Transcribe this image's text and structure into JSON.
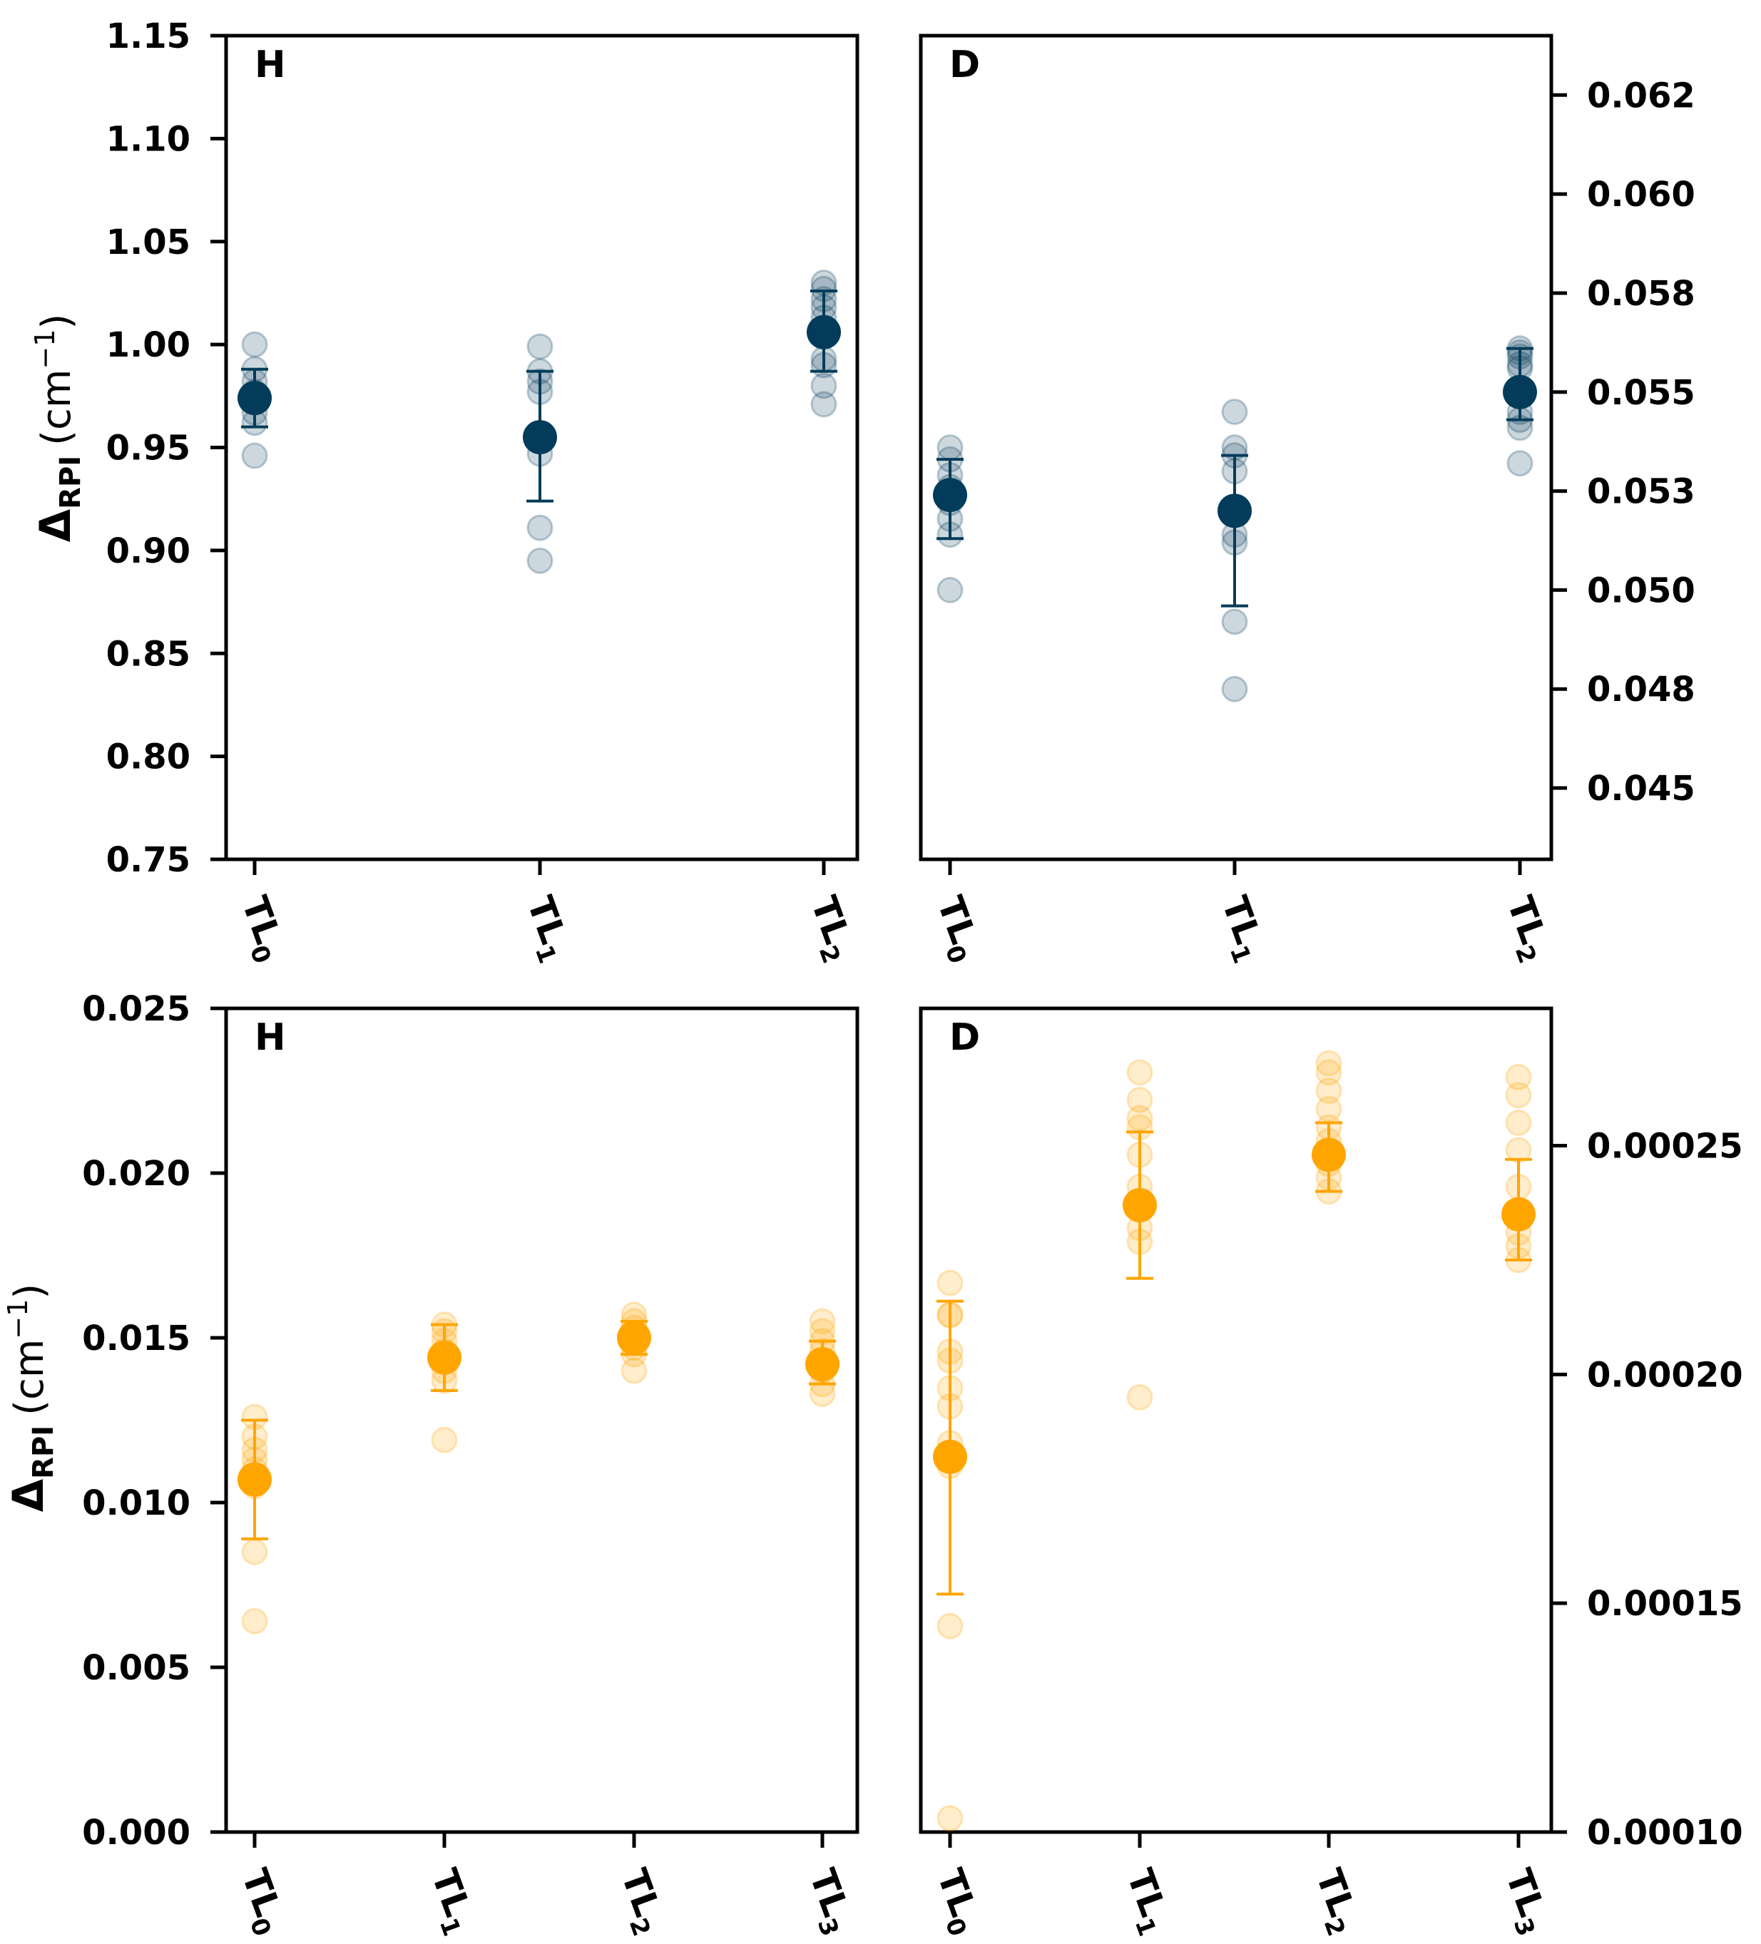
{
  "figure": {
    "ylabel_main": "Δ",
    "ylabel_sub": "RPI",
    "ylabel_unit": "(cm",
    "ylabel_exp": "−1",
    "ylabel_close": ")"
  },
  "colors": {
    "navy": "#033c5a",
    "orange": "#ffa500"
  },
  "chart_data": [
    {
      "id": "top-left",
      "type": "scatter",
      "panel_label": "H",
      "color": "#033c5a",
      "categories": [
        "TL",
        "TL",
        "TL"
      ],
      "category_subs": [
        "0",
        "1",
        "2"
      ],
      "ylim": [
        0.75,
        1.15
      ],
      "axis": "left",
      "yticks": [
        0.75,
        0.8,
        0.85,
        0.9,
        0.95,
        1.0,
        1.05,
        1.1,
        1.15
      ],
      "ytick_labels": [
        "0.75",
        "0.80",
        "0.85",
        "0.90",
        "0.95",
        "1.00",
        "1.05",
        "1.10",
        "1.15"
      ],
      "ylabel": "ΔRPI (cm−1)",
      "points": [
        [
          1.0,
          0.988,
          0.982,
          0.977,
          0.972,
          0.967,
          0.962,
          0.946
        ],
        [
          0.999,
          0.987,
          0.982,
          0.977,
          0.955,
          0.947,
          0.911,
          0.895
        ],
        [
          1.03,
          1.027,
          1.022,
          1.018,
          1.013,
          0.993,
          0.99,
          0.98,
          0.971
        ]
      ],
      "means": [
        0.974,
        0.955,
        1.006
      ],
      "err_low": [
        0.96,
        0.924,
        0.987
      ],
      "err_high": [
        0.988,
        0.987,
        1.026
      ]
    },
    {
      "id": "top-right",
      "type": "scatter",
      "panel_label": "D",
      "color": "#033c5a",
      "categories": [
        "TL",
        "TL",
        "TL"
      ],
      "category_subs": [
        "0",
        "1",
        "2"
      ],
      "ylim": [
        0.0432,
        0.064
      ],
      "axis": "right",
      "yticks": [
        0.045,
        0.0475,
        0.05,
        0.0525,
        0.055,
        0.0575,
        0.06,
        0.0625
      ],
      "ytick_labels": [
        "0.045",
        "0.048",
        "0.050",
        "0.053",
        "0.055",
        "0.058",
        "0.060",
        "0.062"
      ],
      "points": [
        [
          0.0536,
          0.0533,
          0.0529,
          0.0526,
          0.0522,
          0.0518,
          0.0514,
          0.05
        ],
        [
          0.0545,
          0.0536,
          0.0534,
          0.053,
          0.0521,
          0.0514,
          0.0512,
          0.0492,
          0.0475
        ],
        [
          0.0561,
          0.056,
          0.0559,
          0.0557,
          0.0556,
          0.0545,
          0.0543,
          0.0541,
          0.0532
        ]
      ],
      "means": [
        0.0524,
        0.052,
        0.055
      ],
      "err_low": [
        0.0513,
        0.0496,
        0.0543
      ],
      "err_high": [
        0.0533,
        0.0534,
        0.0561
      ]
    },
    {
      "id": "bottom-left",
      "type": "scatter",
      "panel_label": "H",
      "color": "#ffa500",
      "categories": [
        "TL",
        "TL",
        "TL",
        "TL"
      ],
      "category_subs": [
        "0",
        "1",
        "2",
        "3"
      ],
      "ylim": [
        0.0,
        0.025
      ],
      "axis": "left",
      "yticks": [
        0.0,
        0.005,
        0.01,
        0.015,
        0.02,
        0.025
      ],
      "ytick_labels": [
        "0.000",
        "0.005",
        "0.010",
        "0.015",
        "0.020",
        "0.025"
      ],
      "ylabel": "ΔRPI (cm−1)",
      "points": [
        [
          0.0126,
          0.012,
          0.0116,
          0.0113,
          0.011,
          0.0105,
          0.0085,
          0.0064
        ],
        [
          0.0154,
          0.0152,
          0.0149,
          0.0146,
          0.0143,
          0.014,
          0.0137,
          0.0119
        ],
        [
          0.0157,
          0.0155,
          0.0153,
          0.0151,
          0.0149,
          0.0147,
          0.0145,
          0.014
        ],
        [
          0.0155,
          0.0152,
          0.0149,
          0.0146,
          0.0143,
          0.014,
          0.0136,
          0.0133
        ]
      ],
      "means": [
        0.0107,
        0.0144,
        0.015,
        0.0142
      ],
      "err_low": [
        0.0089,
        0.0134,
        0.0145,
        0.0136
      ],
      "err_high": [
        0.0125,
        0.0154,
        0.0155,
        0.0149
      ]
    },
    {
      "id": "bottom-right",
      "type": "scatter",
      "panel_label": "D",
      "color": "#ffa500",
      "categories": [
        "TL",
        "TL",
        "TL",
        "TL"
      ],
      "category_subs": [
        "0",
        "1",
        "2",
        "3"
      ],
      "ylim": [
        0.0001,
        0.00028
      ],
      "axis": "right",
      "yticks": [
        0.0001,
        0.00015,
        0.0002,
        0.00025
      ],
      "ytick_labels": [
        "0.00010",
        "0.00015",
        "0.00020",
        "0.00025"
      ],
      "points": [
        [
          0.00022,
          0.000213,
          0.000213,
          0.000205,
          0.000203,
          0.000197,
          0.000193,
          0.000185,
          0.00018,
          0.000145,
          0.000103
        ],
        [
          0.000266,
          0.00026,
          0.000256,
          0.000254,
          0.000248,
          0.000241,
          0.000236,
          0.000232,
          0.000229,
          0.000195
        ],
        [
          0.000268,
          0.000266,
          0.000262,
          0.000258,
          0.000254,
          0.000251,
          0.000248,
          0.000246,
          0.000243,
          0.00024
        ],
        [
          0.000265,
          0.000261,
          0.000255,
          0.000249,
          0.000241,
          0.000235,
          0.000231,
          0.000228,
          0.000225
        ]
      ],
      "means": [
        0.000182,
        0.000237,
        0.000248,
        0.000235
      ],
      "err_low": [
        0.000152,
        0.000221,
        0.00024,
        0.000225
      ],
      "err_high": [
        0.000216,
        0.000253,
        0.000255,
        0.000247
      ]
    }
  ]
}
